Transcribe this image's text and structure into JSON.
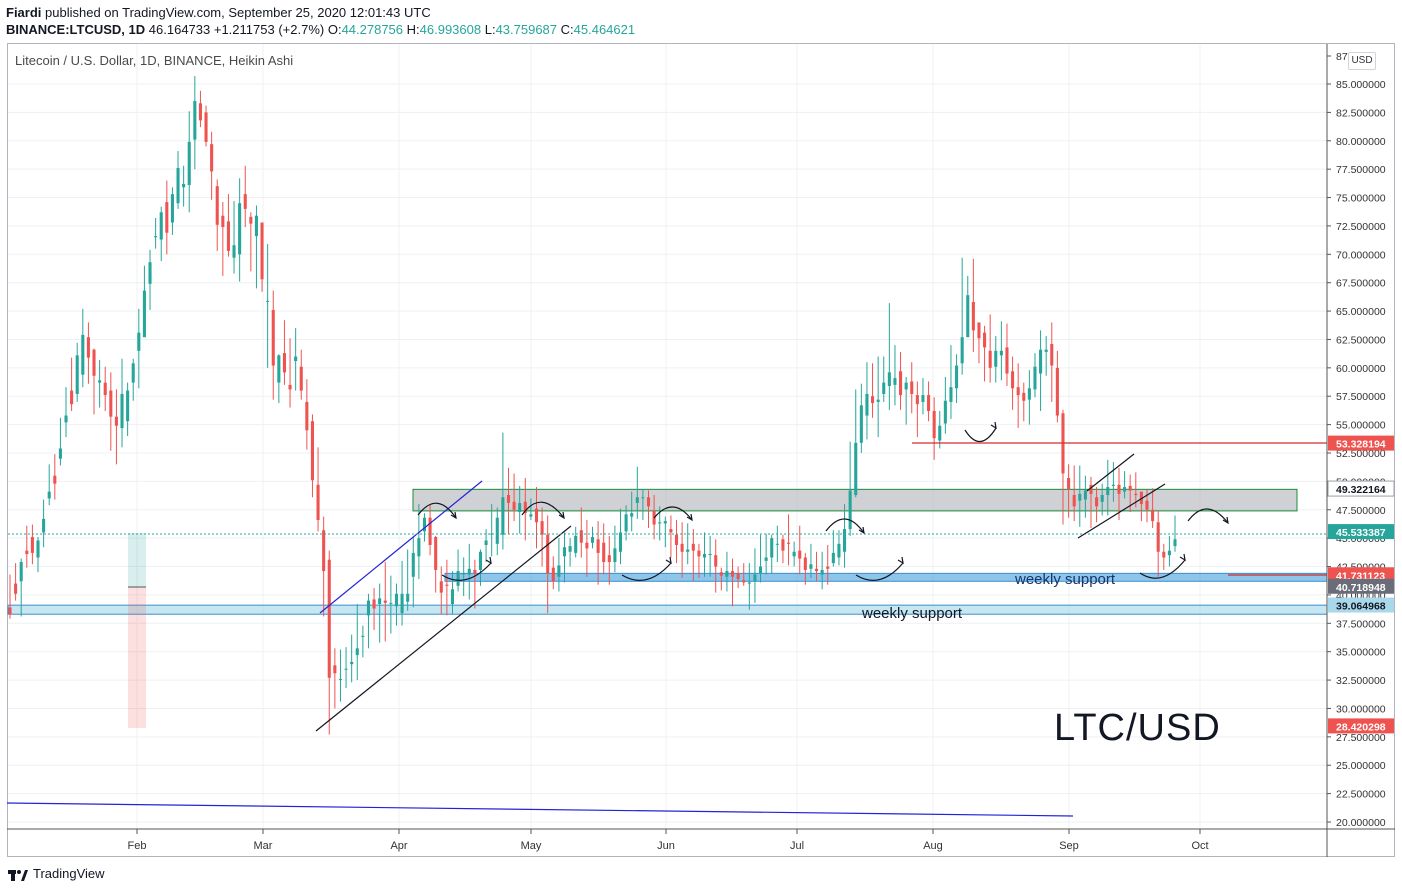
{
  "header": {
    "publisher": "Fiardi",
    "published_text": "published on TradingView.com, September 25, 2020 12:01:43 UTC",
    "symbol": "BINANCE:LTCUSD, 1D",
    "last": "46.164733",
    "change": "+1.211753 (+2.7%)",
    "open_label": "O:",
    "open": "44.278756",
    "high_label": "H:",
    "high": "46.993608",
    "low_label": "L:",
    "low": "43.759687",
    "close_label": "C:",
    "close": "45.464621"
  },
  "chart_title": "Litecoin / U.S. Dollar, 1D, BINANCE, Heikin Ashi",
  "currency_button": "USD",
  "footer_brand": "TradingView",
  "colors": {
    "up": "#26a69a",
    "down": "#ef5350",
    "resistance_zone": "#b0b3b8",
    "support_zone": "#5dade2",
    "red_line": "#d32f2f",
    "blue_line": "#2323d8"
  },
  "chart_data": {
    "type": "candlestick",
    "style": "Heikin Ashi",
    "symbol": "LTCUSD",
    "timeframe": "1D",
    "x_labels": [
      "Feb",
      "Mar",
      "Apr",
      "May",
      "Jun",
      "Jul",
      "Aug",
      "Sep",
      "Oct"
    ],
    "y_ticks": [
      "87",
      "85.000000",
      "82.500000",
      "80.000000",
      "77.500000",
      "75.000000",
      "72.500000",
      "70.000000",
      "67.500000",
      "65.000000",
      "62.500000",
      "60.000000",
      "57.500000",
      "55.000000",
      "52.500000",
      "50.000000",
      "47.500000",
      "45.000000",
      "42.500000",
      "40.000000",
      "37.500000",
      "35.000000",
      "32.500000",
      "30.000000",
      "27.500000",
      "25.000000",
      "22.500000",
      "20.000000"
    ],
    "y_range": [
      19.5,
      87.5
    ],
    "price_labels": [
      {
        "text": "53.328194",
        "value": 53.328194,
        "color": "#ef5350"
      },
      {
        "text": "49.322164",
        "value": 49.322164,
        "color": "#ffffff",
        "text_color": "#131722"
      },
      {
        "text": "45.533387",
        "value": 45.533387,
        "color": "#26a69a"
      },
      {
        "text": "41.731123",
        "value": 41.731123,
        "color": "#ef5350"
      },
      {
        "text": "40.718948",
        "value": 40.718948,
        "color": "#6a6d78"
      },
      {
        "text": "39.064968",
        "value": 39.064968,
        "color": "#a8d8ea",
        "text_color": "#131722"
      },
      {
        "text": "28.420298",
        "value": 28.420298,
        "color": "#ef5350"
      }
    ],
    "annotations": {
      "weekly_support_1": "weekly support",
      "weekly_support_2": "weekly support",
      "big_label": "LTC/USD"
    },
    "zones": [
      {
        "name": "resistance",
        "from": 47.4,
        "to": 49.3
      },
      {
        "name": "weekly-support-upper",
        "from": 41.2,
        "to": 41.9
      },
      {
        "name": "weekly-support-lower",
        "from": 38.3,
        "to": 39.1
      }
    ],
    "candles": [
      [
        38.9,
        38.3,
        41.8,
        37.9
      ],
      [
        41.0,
        40.1,
        42.8,
        39.5
      ],
      [
        41.2,
        42.9,
        43.2,
        38.1
      ],
      [
        43.9,
        43.6,
        46.1,
        42.4
      ],
      [
        45.1,
        43.7,
        46.2,
        42.7
      ],
      [
        43.3,
        44.8,
        45.1,
        42.0
      ],
      [
        45.5,
        46.7,
        48.4,
        44.2
      ],
      [
        48.5,
        49.1,
        51.5,
        47.9
      ],
      [
        50.5,
        49.8,
        52.4,
        48.4
      ],
      [
        52.0,
        52.9,
        55.6,
        51.4
      ],
      [
        55.2,
        55.8,
        58.3,
        53.9
      ],
      [
        58.0,
        56.8,
        60.9,
        56.2
      ],
      [
        57.7,
        61.1,
        62.2,
        57.0
      ],
      [
        59.4,
        62.9,
        65.2,
        58.3
      ],
      [
        62.7,
        60.9,
        64.0,
        58.6
      ],
      [
        61.6,
        59.3,
        61.7,
        55.9
      ],
      [
        58.7,
        58.9,
        60.7,
        56.5
      ],
      [
        58.7,
        57.6,
        60.1,
        56.2
      ],
      [
        58.0,
        55.7,
        59.6,
        52.7
      ],
      [
        55.7,
        54.9,
        58.1,
        51.5
      ],
      [
        54.7,
        57.7,
        60.8,
        53.0
      ],
      [
        55.3,
        58.0,
        58.7,
        54.0
      ],
      [
        58.7,
        60.4,
        60.8,
        57.1
      ],
      [
        61.5,
        63.1,
        65.2,
        58.2
      ],
      [
        62.7,
        66.8,
        69.0,
        62.7
      ],
      [
        67.4,
        69.3,
        70.4,
        65.1
      ],
      [
        71.5,
        71.6,
        73.2,
        70.5
      ],
      [
        71.3,
        73.7,
        74.2,
        69.4
      ],
      [
        74.6,
        71.9,
        76.5,
        70.0
      ],
      [
        72.8,
        75.3,
        75.9,
        71.7
      ],
      [
        74.5,
        77.6,
        79.1,
        74.0
      ],
      [
        75.9,
        76.2,
        77.8,
        74.2
      ],
      [
        76.1,
        79.9,
        82.6,
        73.7
      ],
      [
        80.1,
        83.5,
        85.7,
        77.5
      ],
      [
        83.3,
        81.8,
        84.4,
        81.2
      ],
      [
        82.5,
        79.9,
        83.1,
        79.5
      ],
      [
        79.7,
        77.3,
        80.8,
        74.8
      ],
      [
        76.0,
        72.6,
        76.6,
        70.3
      ],
      [
        73.4,
        72.4,
        74.6,
        68.1
      ],
      [
        72.9,
        70.3,
        75.3,
        69.8
      ],
      [
        69.7,
        70.8,
        74.7,
        68.3
      ],
      [
        70.0,
        74.5,
        76.7,
        67.6
      ],
      [
        75.3,
        74.0,
        77.8,
        72.4
      ],
      [
        73.3,
        72.7,
        73.7,
        68.5
      ],
      [
        71.6,
        73.4,
        74.3,
        67.0
      ],
      [
        72.8,
        67.8,
        72.8,
        66.7
      ],
      [
        65.9,
        65.9,
        70.9,
        60.0
      ],
      [
        65.1,
        60.2,
        66.8,
        57.2
      ],
      [
        58.7,
        61.1,
        61.2,
        56.9
      ],
      [
        61.3,
        59.6,
        64.2,
        58.5
      ],
      [
        58.5,
        58.1,
        62.6,
        56.5
      ],
      [
        60.6,
        61.0,
        63.5,
        58.0
      ],
      [
        60.1,
        58.0,
        61.6,
        57.2
      ],
      [
        57.0,
        54.5,
        59.0,
        52.8
      ],
      [
        55.3,
        50.1,
        55.9,
        48.6
      ],
      [
        49.7,
        46.6,
        53.0,
        45.6
      ],
      [
        45.7,
        42.1,
        46.9,
        38.1
      ],
      [
        43.1,
        32.7,
        43.9,
        27.7
      ],
      [
        33.8,
        33.1,
        35.3,
        30.0
      ],
      [
        32.6,
        32.6,
        35.2,
        30.6
      ],
      [
        33.5,
        33.5,
        35.4,
        31.8
      ],
      [
        33.9,
        34.1,
        36.5,
        32.3
      ],
      [
        34.7,
        35.3,
        39.2,
        32.5
      ],
      [
        36.3,
        36.4,
        37.3,
        34.5
      ],
      [
        38.2,
        39.5,
        40.1,
        35.3
      ],
      [
        39.6,
        38.8,
        40.6,
        36.9
      ],
      [
        39.2,
        39.7,
        41.0,
        35.8
      ],
      [
        39.5,
        39.3,
        42.9,
        35.9
      ],
      [
        39.3,
        39.3,
        41.7,
        36.6
      ],
      [
        39.0,
        40.1,
        41.0,
        37.3
      ],
      [
        38.4,
        40.1,
        43.0,
        37.3
      ],
      [
        39.4,
        40.1,
        44.0,
        38.6
      ],
      [
        41.6,
        43.7,
        45.1,
        38.9
      ],
      [
        43.4,
        45.0,
        48.0,
        41.4
      ],
      [
        45.6,
        46.8,
        47.2,
        44.7
      ],
      [
        46.8,
        44.4,
        48.0,
        43.5
      ],
      [
        45.1,
        42.2,
        45.2,
        40.2
      ],
      [
        41.2,
        40.2,
        42.5,
        38.3
      ],
      [
        40.9,
        40.8,
        43.1,
        38.2
      ],
      [
        39.2,
        40.5,
        42.1,
        38.3
      ],
      [
        40.8,
        42.1,
        44.0,
        40.3
      ],
      [
        41.8,
        41.9,
        43.3,
        39.9
      ],
      [
        41.8,
        42.3,
        44.5,
        39.6
      ],
      [
        42.2,
        41.9,
        43.1,
        38.8
      ],
      [
        42.2,
        43.8,
        44.0,
        40.8
      ],
      [
        44.4,
        44.8,
        45.8,
        42.9
      ],
      [
        45.4,
        45.4,
        48.0,
        43.4
      ],
      [
        44.5,
        46.8,
        47.7,
        43.5
      ],
      [
        45.3,
        48.6,
        54.3,
        44.0
      ],
      [
        48.8,
        48.1,
        51.2,
        45.4
      ],
      [
        48.2,
        47.5,
        50.7,
        46.5
      ],
      [
        47.3,
        48.1,
        49.6,
        45.4
      ],
      [
        48.2,
        47.2,
        50.3,
        44.8
      ],
      [
        46.9,
        47.1,
        48.5,
        46.6
      ],
      [
        47.6,
        46.4,
        49.5,
        44.1
      ],
      [
        46.5,
        45.3,
        47.7,
        42.5
      ],
      [
        45.3,
        41.9,
        47.0,
        38.4
      ],
      [
        42.4,
        41.2,
        43.4,
        40.5
      ],
      [
        41.6,
        42.6,
        45.0,
        40.3
      ],
      [
        43.4,
        44.2,
        45.5,
        41.1
      ],
      [
        43.8,
        44.3,
        45.0,
        42.5
      ],
      [
        43.7,
        45.2,
        46.0,
        43.3
      ],
      [
        45.7,
        44.6,
        47.7,
        43.3
      ],
      [
        44.6,
        44.1,
        46.6,
        41.6
      ],
      [
        44.6,
        45.1,
        46.0,
        44.1
      ],
      [
        44.9,
        43.7,
        46.5,
        40.9
      ],
      [
        44.6,
        42.9,
        46.3,
        41.8
      ],
      [
        43.5,
        42.9,
        45.2,
        40.9
      ],
      [
        42.9,
        44.1,
        46.1,
        42.0
      ],
      [
        43.8,
        45.5,
        47.6,
        42.7
      ],
      [
        45.6,
        47.1,
        47.9,
        44.8
      ],
      [
        46.9,
        47.2,
        49.1,
        45.6
      ],
      [
        48.1,
        48.6,
        51.3,
        46.7
      ],
      [
        48.6,
        48.6,
        49.3,
        46.6
      ],
      [
        48.6,
        47.8,
        49.2,
        45.9
      ],
      [
        47.4,
        46.2,
        48.8,
        44.9
      ],
      [
        46.3,
        46.4,
        47.8,
        44.8
      ],
      [
        46.3,
        46.5,
        46.9,
        44.2
      ],
      [
        45.8,
        45.5,
        47.0,
        43.3
      ],
      [
        45.3,
        44.4,
        46.6,
        42.8
      ],
      [
        44.5,
        43.8,
        46.4,
        41.5
      ],
      [
        43.8,
        44.0,
        46.3,
        42.7
      ],
      [
        44.5,
        43.9,
        45.8,
        41.2
      ],
      [
        43.9,
        43.4,
        44.5,
        41.5
      ],
      [
        43.3,
        43.6,
        45.5,
        41.6
      ],
      [
        43.6,
        43.6,
        45.2,
        41.6
      ],
      [
        43.5,
        42.5,
        44.9,
        40.2
      ],
      [
        42.0,
        41.7,
        42.4,
        40.4
      ],
      [
        41.6,
        42.1,
        43.8,
        40.3
      ],
      [
        42.1,
        41.6,
        43.2,
        39.0
      ],
      [
        41.9,
        41.4,
        42.5,
        40.6
      ],
      [
        41.3,
        41.1,
        42.8,
        40.8
      ],
      [
        41.0,
        41.1,
        42.8,
        38.7
      ],
      [
        41.2,
        41.8,
        44.1,
        39.3
      ],
      [
        41.9,
        42.5,
        45.3,
        41.1
      ],
      [
        43.0,
        43.3,
        45.4,
        41.8
      ],
      [
        43.3,
        45.0,
        45.3,
        41.9
      ],
      [
        44.5,
        44.5,
        46.1,
        42.9
      ],
      [
        44.9,
        43.9,
        45.3,
        42.8
      ],
      [
        44.6,
        44.5,
        47.1,
        42.6
      ],
      [
        43.4,
        43.8,
        44.7,
        42.5
      ],
      [
        43.9,
        43.2,
        46.1,
        41.8
      ],
      [
        43.3,
        42.2,
        43.7,
        40.9
      ],
      [
        42.3,
        42.7,
        44.5,
        41.5
      ],
      [
        42.3,
        42.1,
        43.8,
        41.2
      ],
      [
        41.8,
        42.2,
        43.8,
        40.5
      ],
      [
        42.5,
        42.3,
        44.4,
        40.9
      ],
      [
        42.8,
        43.7,
        45.7,
        42.5
      ],
      [
        43.3,
        44.5,
        45.7,
        42.6
      ],
      [
        43.8,
        45.8,
        48.0,
        42.4
      ],
      [
        45.8,
        49.2,
        53.5,
        45.2
      ],
      [
        48.8,
        53.4,
        58.1,
        48.6
      ],
      [
        53.4,
        56.7,
        58.6,
        52.5
      ],
      [
        55.8,
        57.7,
        60.5,
        53.7
      ],
      [
        57.5,
        56.9,
        60.4,
        55.6
      ],
      [
        57.0,
        57.2,
        61.0,
        53.9
      ],
      [
        57.7,
        58.7,
        61.0,
        57.0
      ],
      [
        58.4,
        59.6,
        65.7,
        56.3
      ],
      [
        58.5,
        59.1,
        62.0,
        56.7
      ],
      [
        59.7,
        57.6,
        61.4,
        56.3
      ],
      [
        58.1,
        58.7,
        59.2,
        55.0
      ],
      [
        58.8,
        57.7,
        60.5,
        56.0
      ],
      [
        57.6,
        56.8,
        58.8,
        53.9
      ],
      [
        57.0,
        57.6,
        59.1,
        55.9
      ],
      [
        57.6,
        56.2,
        58.8,
        55.3
      ],
      [
        56.2,
        53.8,
        57.4,
        51.9
      ],
      [
        53.6,
        54.9,
        56.2,
        52.9
      ],
      [
        55.1,
        57.1,
        59.2,
        54.2
      ],
      [
        57.0,
        58.3,
        62.0,
        55.5
      ],
      [
        58.2,
        60.2,
        61.2,
        56.9
      ],
      [
        60.4,
        62.7,
        69.7,
        59.4
      ],
      [
        62.7,
        66.4,
        68.1,
        62.7
      ],
      [
        65.8,
        63.3,
        69.6,
        61.4
      ],
      [
        64.0,
        62.6,
        63.9,
        60.4
      ],
      [
        63.1,
        61.8,
        63.7,
        58.8
      ],
      [
        61.5,
        60.0,
        64.7,
        58.7
      ],
      [
        60.1,
        61.5,
        62.8,
        58.7
      ],
      [
        61.1,
        61.5,
        64.1,
        58.9
      ],
      [
        61.8,
        59.5,
        63.9,
        58.4
      ],
      [
        59.7,
        58.2,
        61.0,
        56.3
      ],
      [
        58.3,
        57.6,
        60.4,
        54.7
      ],
      [
        57.8,
        57.1,
        58.7,
        55.3
      ],
      [
        57.2,
        58.2,
        59.8,
        55.0
      ],
      [
        58.1,
        60.1,
        61.3,
        57.4
      ],
      [
        59.5,
        61.6,
        63.3,
        56.2
      ],
      [
        61.4,
        61.6,
        62.8,
        59.3
      ],
      [
        62.1,
        60.2,
        64.0,
        57.0
      ],
      [
        60.0,
        55.8,
        61.5,
        55.2
      ],
      [
        56.0,
        50.7,
        56.3,
        46.2
      ],
      [
        50.3,
        49.3,
        51.5,
        46.8
      ],
      [
        48.8,
        47.8,
        51.4,
        46.5
      ],
      [
        48.3,
        48.9,
        51.4,
        46.0
      ],
      [
        48.4,
        49.2,
        50.5,
        46.8
      ],
      [
        49.7,
        48.9,
        50.4,
        45.9
      ],
      [
        48.6,
        47.8,
        49.5,
        46.4
      ],
      [
        48.2,
        48.8,
        49.8,
        47.0
      ],
      [
        48.8,
        49.5,
        51.9,
        47.0
      ],
      [
        49.6,
        49.7,
        51.7,
        48.2
      ],
      [
        49.7,
        48.9,
        51.2,
        46.6
      ],
      [
        49.1,
        49.5,
        50.9,
        48.5
      ],
      [
        49.6,
        49.2,
        50.6,
        47.3
      ],
      [
        48.9,
        48.8,
        50.8,
        47.7
      ],
      [
        49.1,
        48.0,
        49.0,
        46.5
      ],
      [
        48.3,
        47.5,
        49.3,
        46.4
      ],
      [
        47.5,
        46.5,
        49.4,
        45.9
      ],
      [
        46.4,
        43.8,
        47.4,
        41.6
      ],
      [
        43.8,
        43.3,
        44.5,
        42.2
      ],
      [
        43.5,
        43.9,
        45.2,
        42.5
      ],
      [
        44.3,
        44.9,
        47.0,
        43.8
      ]
    ]
  }
}
